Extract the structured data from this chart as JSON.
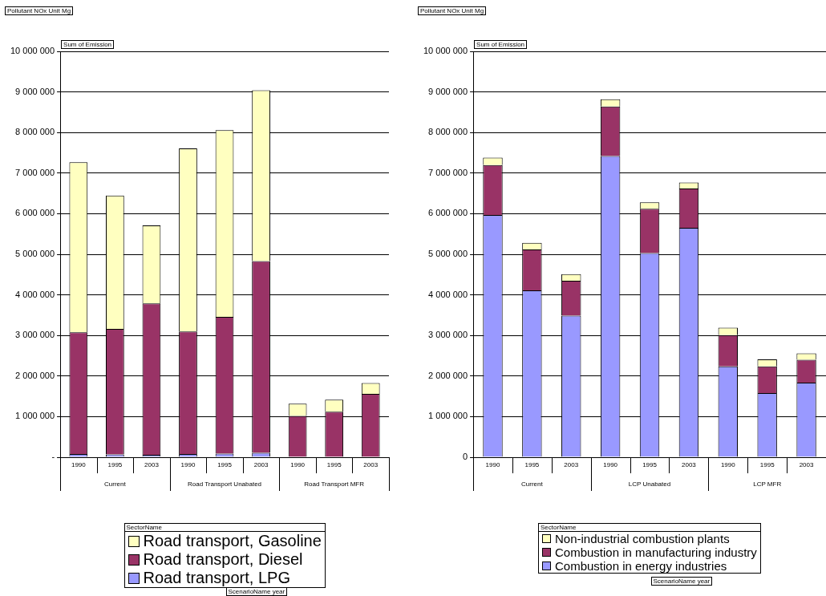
{
  "chart_data": [
    {
      "type": "bar",
      "title": "Pollutant NOx Unit Mg",
      "ylabel": "Sum of Emission",
      "xlabel": "ScenarioName year",
      "legend_title": "SectorName",
      "stacked": true,
      "grid": "y",
      "legend": "bottom",
      "categories": [
        "1990",
        "1995",
        "2003",
        "1990",
        "1995",
        "2003",
        "1990",
        "1995",
        "2003"
      ],
      "annotations": [
        "Current",
        "Road Transport Unabated",
        "Road Transport MFR"
      ],
      "series": [
        {
          "name": "Road transport, LPG",
          "color": "#9999ff",
          "values": [
            80000,
            70000,
            60000,
            80000,
            90000,
            110000,
            10000,
            10000,
            10000
          ]
        },
        {
          "name": "Road transport, Diesel",
          "color": "#993366",
          "values": [
            3000000,
            3090000,
            3730000,
            3020000,
            3370000,
            4720000,
            1010000,
            1110000,
            1550000
          ]
        },
        {
          "name": "Road transport, Gasoline",
          "color": "#ffffc0",
          "values": [
            4190000,
            3290000,
            1920000,
            4510000,
            4600000,
            4210000,
            300000,
            300000,
            270000
          ]
        }
      ],
      "ylim": [
        0,
        10000000
      ],
      "yticks": [
        {
          "value": 0,
          "label": "-"
        },
        {
          "value": 1000000,
          "label": "1 000 000"
        },
        {
          "value": 2000000,
          "label": "2 000 000"
        },
        {
          "value": 3000000,
          "label": "3 000 000"
        },
        {
          "value": 4000000,
          "label": "4 000 000"
        },
        {
          "value": 5000000,
          "label": "5 000 000"
        },
        {
          "value": 6000000,
          "label": "6 000 000"
        },
        {
          "value": 7000000,
          "label": "7 000 000"
        },
        {
          "value": 8000000,
          "label": "8 000 000"
        },
        {
          "value": 9000000,
          "label": "9 000 000"
        },
        {
          "value": 10000000,
          "label": "10 000 000"
        }
      ]
    },
    {
      "type": "bar",
      "title": "Pollutant NOx Unit Mg",
      "ylabel": "Sum of Emission",
      "xlabel": "ScenarioName year",
      "legend_title": "SectorName",
      "stacked": true,
      "grid": "y",
      "legend": "bottom",
      "categories": [
        "1990",
        "1995",
        "2003",
        "1990",
        "1995",
        "2003",
        "1990",
        "1995",
        "2003"
      ],
      "annotations": [
        "Current",
        "LCP Unabated",
        "LCP MFR"
      ],
      "series": [
        {
          "name": "Combustion in energy industries",
          "color": "#9999ff",
          "values": [
            5970000,
            4110000,
            3490000,
            7420000,
            5030000,
            5650000,
            2240000,
            1580000,
            1840000
          ]
        },
        {
          "name": "Combustion in manufacturing industry",
          "color": "#993366",
          "values": [
            1230000,
            1010000,
            860000,
            1220000,
            1090000,
            970000,
            770000,
            660000,
            560000
          ]
        },
        {
          "name": "Non-industrial combustion plants",
          "color": "#ffffc0",
          "values": [
            180000,
            160000,
            160000,
            180000,
            160000,
            150000,
            180000,
            170000,
            160000
          ]
        }
      ],
      "ylim": [
        0,
        10000000
      ],
      "yticks": [
        0,
        {
          "value": 1000000,
          "label": "1 000 000"
        },
        {
          "value": 2000000,
          "label": "2 000 000"
        },
        {
          "value": 3000000,
          "label": "3 000 000"
        },
        {
          "value": 4000000,
          "label": "4 000 000"
        },
        {
          "value": 5000000,
          "label": "5 000 000"
        },
        {
          "value": 6000000,
          "label": "6 000 000"
        },
        {
          "value": 7000000,
          "label": "7 000 000"
        },
        {
          "value": 8000000,
          "label": "8 000 000"
        },
        {
          "value": 9000000,
          "label": "9 000 000"
        },
        {
          "value": 10000000,
          "label": "10 000 000"
        }
      ]
    }
  ]
}
